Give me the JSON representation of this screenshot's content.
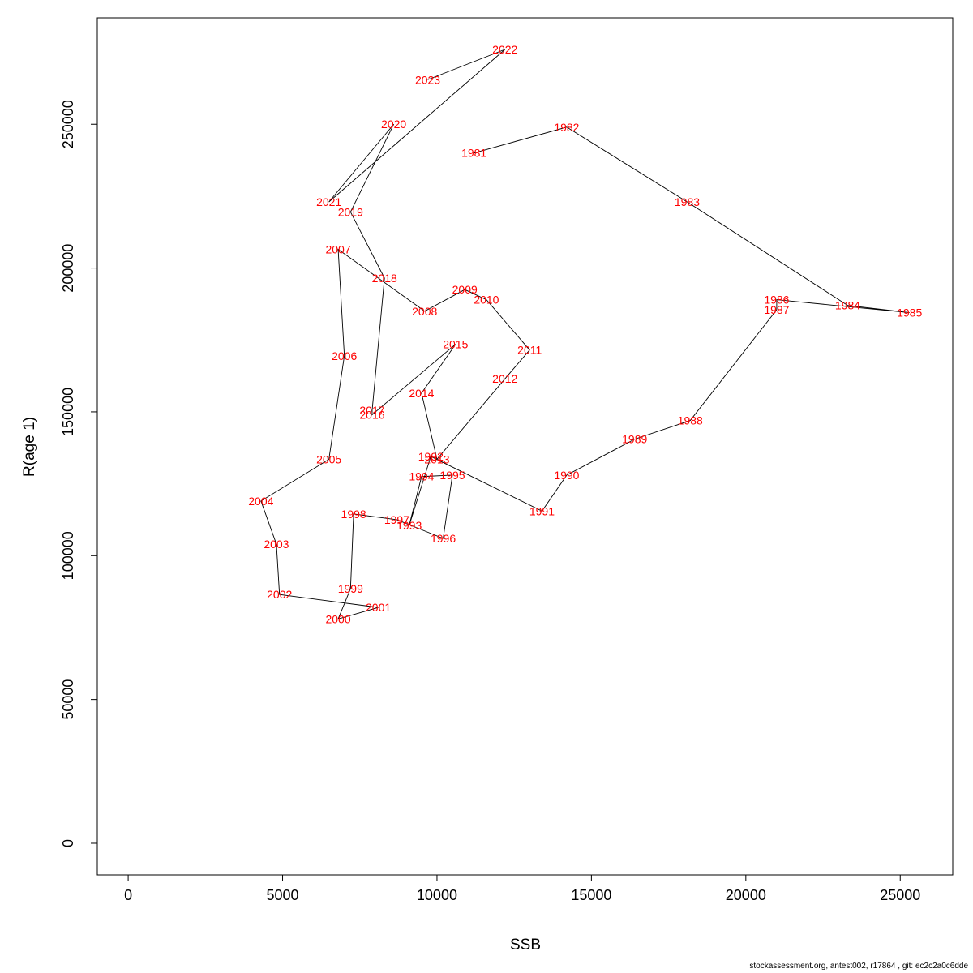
{
  "chart_data": {
    "type": "line",
    "xlabel": "SSB",
    "ylabel": "R(age 1)",
    "xlim": [
      -1000,
      26700
    ],
    "ylim": [
      -11000,
      287000
    ],
    "x_ticks": [
      0,
      5000,
      10000,
      15000,
      20000,
      25000
    ],
    "y_ticks": [
      0,
      50000,
      100000,
      150000,
      200000,
      250000
    ],
    "grid": false,
    "series": [
      {
        "points": [
          {
            "label": "1981",
            "x": 11200,
            "y": 240000
          },
          {
            "label": "1982",
            "x": 14200,
            "y": 249000
          },
          {
            "label": "1983",
            "x": 18100,
            "y": 223000
          },
          {
            "label": "1984",
            "x": 23300,
            "y": 187000
          },
          {
            "label": "1985",
            "x": 25300,
            "y": 184500
          },
          {
            "label": "1986",
            "x": 21000,
            "y": 189000
          },
          {
            "label": "1987",
            "x": 21000,
            "y": 185500
          },
          {
            "label": "1988",
            "x": 18200,
            "y": 147000
          },
          {
            "label": "1989",
            "x": 16400,
            "y": 140500
          },
          {
            "label": "1990",
            "x": 14200,
            "y": 128000
          },
          {
            "label": "1991",
            "x": 13400,
            "y": 115500
          },
          {
            "label": "1992",
            "x": 9800,
            "y": 134500
          },
          {
            "label": "1993",
            "x": 9100,
            "y": 110500
          },
          {
            "label": "1994",
            "x": 9500,
            "y": 127500
          },
          {
            "label": "1995",
            "x": 10500,
            "y": 128000
          },
          {
            "label": "1996",
            "x": 10200,
            "y": 106000
          },
          {
            "label": "1997",
            "x": 8700,
            "y": 112500
          },
          {
            "label": "1998",
            "x": 7300,
            "y": 114500
          },
          {
            "label": "1999",
            "x": 7200,
            "y": 88500
          },
          {
            "label": "2000",
            "x": 6800,
            "y": 78000
          },
          {
            "label": "2001",
            "x": 8100,
            "y": 82000
          },
          {
            "label": "2002",
            "x": 4900,
            "y": 86500
          },
          {
            "label": "2003",
            "x": 4800,
            "y": 104000
          },
          {
            "label": "2004",
            "x": 4300,
            "y": 119000
          },
          {
            "label": "2005",
            "x": 6500,
            "y": 133500
          },
          {
            "label": "2006",
            "x": 7000,
            "y": 169500
          },
          {
            "label": "2007",
            "x": 6800,
            "y": 206500
          },
          {
            "label": "2008",
            "x": 9600,
            "y": 185000
          },
          {
            "label": "2009",
            "x": 10900,
            "y": 192500
          },
          {
            "label": "2010",
            "x": 11600,
            "y": 189000
          },
          {
            "label": "2011",
            "x": 13000,
            "y": 171500
          },
          {
            "label": "2012",
            "x": 12200,
            "y": 161500
          },
          {
            "label": "2013",
            "x": 10000,
            "y": 133500
          },
          {
            "label": "2014",
            "x": 9500,
            "y": 156500
          },
          {
            "label": "2015",
            "x": 10600,
            "y": 173500
          },
          {
            "label": "2016",
            "x": 7900,
            "y": 149000
          },
          {
            "label": "2017",
            "x": 7900,
            "y": 150500
          },
          {
            "label": "2018",
            "x": 8300,
            "y": 196500
          },
          {
            "label": "2019",
            "x": 7200,
            "y": 219500
          },
          {
            "label": "2020",
            "x": 8600,
            "y": 250000
          },
          {
            "label": "2021",
            "x": 6500,
            "y": 223000
          },
          {
            "label": "2022",
            "x": 12200,
            "y": 276000
          },
          {
            "label": "2023",
            "x": 9700,
            "y": 265500
          }
        ]
      }
    ]
  },
  "footer": "stockassessment.org, antest002, r17864 , git: ec2c2a0c6dde"
}
